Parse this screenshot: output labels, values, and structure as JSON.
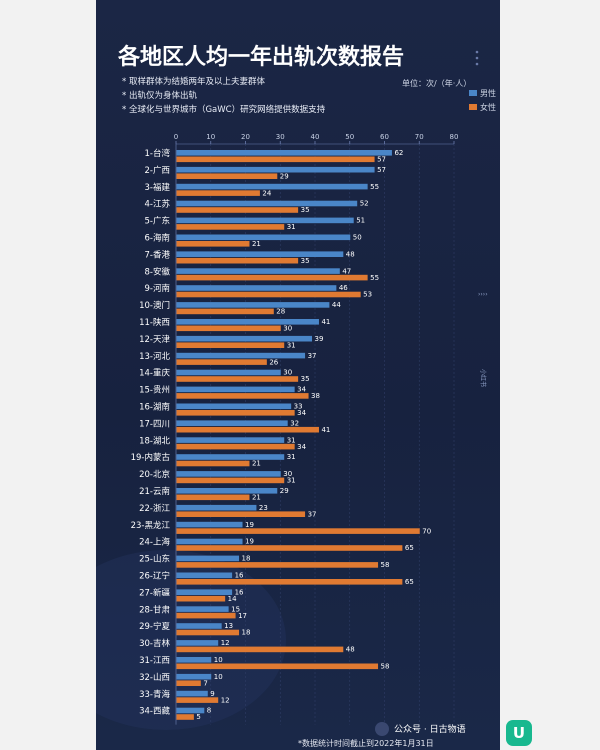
{
  "chart_data": {
    "type": "bar",
    "orientation": "horizontal",
    "title": "各地区人均一年出轨次数报告",
    "notes": [
      "* 取样群体为结婚两年及以上夫妻群体",
      "* 出轨仅为身体出轨",
      "* 全球化与世界城市（GaWC）研究网络提供数据支持"
    ],
    "unit": "单位：次/（年·人）",
    "xlim": [
      0,
      80
    ],
    "xticks": [
      0,
      10,
      20,
      30,
      40,
      50,
      60,
      70,
      80
    ],
    "grid": true,
    "legend_position": "top-right",
    "categories": [
      "1-台湾",
      "2-广西",
      "3-福建",
      "4-江苏",
      "5-广东",
      "6-海南",
      "7-香港",
      "8-安徽",
      "9-河南",
      "10-澳门",
      "11-陕西",
      "12-天津",
      "13-河北",
      "14-重庆",
      "15-贵州",
      "16-湖南",
      "17-四川",
      "18-湖北",
      "19-内蒙古",
      "20-北京",
      "21-云南",
      "22-浙江",
      "23-黑龙江",
      "24-上海",
      "25-山东",
      "26-辽宁",
      "27-新疆",
      "28-甘肃",
      "29-宁夏",
      "30-吉林",
      "31-江西",
      "32-山西",
      "33-青海",
      "34-西藏"
    ],
    "series": [
      {
        "name": "男性",
        "color": "#4a86c8",
        "values": [
          62,
          57,
          55,
          52,
          51,
          50,
          48,
          47,
          46,
          44,
          41,
          39,
          37,
          30,
          34,
          33,
          32,
          31,
          31,
          30,
          29,
          23,
          19,
          19,
          18,
          16,
          16,
          15,
          13,
          12,
          10,
          10,
          9,
          8
        ]
      },
      {
        "name": "女性",
        "color": "#e07a32",
        "values": [
          57,
          29,
          24,
          35,
          31,
          21,
          35,
          55,
          53,
          28,
          30,
          31,
          26,
          35,
          38,
          34,
          41,
          34,
          21,
          31,
          21,
          37,
          70,
          65,
          58,
          65,
          14,
          17,
          18,
          48,
          58,
          7,
          12,
          5
        ]
      }
    ]
  },
  "footer": "*数据统计时间截止到2022年1月31日",
  "watermark": "公众号 · 日古物语",
  "side_label": "小红书"
}
